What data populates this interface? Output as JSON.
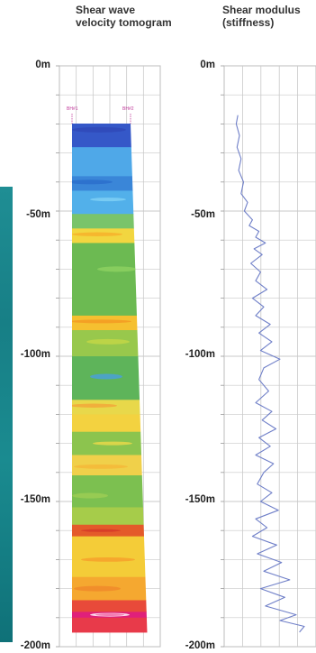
{
  "panel_left": {
    "title_line1": "Shear wave",
    "title_line2": "velocity tomogram",
    "borehole_left": "BH#1",
    "borehole_right": "BH#2"
  },
  "panel_right": {
    "title_line1": "Shear modulus",
    "title_line2": "(stiffness)"
  },
  "colors": {
    "accent_teal": "#1a8b90",
    "trace": "#6f7fc8",
    "grid": "#c9c9c9"
  },
  "chart_data": [
    {
      "type": "heatmap",
      "title": "Shear wave velocity tomogram",
      "ylabel": "",
      "yticks": [
        "0m",
        "-50m",
        "-100m",
        "-150m",
        "-200m"
      ],
      "ylim": [
        -200,
        0
      ],
      "grid": true,
      "color_bands": [
        {
          "depth_top": -17,
          "depth_bottom": -28,
          "color": "#3558c8"
        },
        {
          "depth_top": -28,
          "depth_bottom": -38,
          "color": "#4fa8e8"
        },
        {
          "depth_top": -38,
          "depth_bottom": -43,
          "color": "#3a86d8"
        },
        {
          "depth_top": -43,
          "depth_bottom": -51,
          "color": "#52b0ea"
        },
        {
          "depth_top": -51,
          "depth_bottom": -56,
          "color": "#7ac46a"
        },
        {
          "depth_top": -56,
          "depth_bottom": -61,
          "color": "#f2d640"
        },
        {
          "depth_top": -61,
          "depth_bottom": -86,
          "color": "#6cba52"
        },
        {
          "depth_top": -86,
          "depth_bottom": -91,
          "color": "#f5c030"
        },
        {
          "depth_top": -91,
          "depth_bottom": -100,
          "color": "#98c84c"
        },
        {
          "depth_top": -100,
          "depth_bottom": -115,
          "color": "#5eb45a"
        },
        {
          "depth_top": -115,
          "depth_bottom": -120,
          "color": "#e8d84a"
        },
        {
          "depth_top": -120,
          "depth_bottom": -126,
          "color": "#f3d240"
        },
        {
          "depth_top": -126,
          "depth_bottom": -134,
          "color": "#8cc44e"
        },
        {
          "depth_top": -134,
          "depth_bottom": -141,
          "color": "#f0d04a"
        },
        {
          "depth_top": -141,
          "depth_bottom": -152,
          "color": "#7cc050"
        },
        {
          "depth_top": -152,
          "depth_bottom": -158,
          "color": "#a6cc4a"
        },
        {
          "depth_top": -158,
          "depth_bottom": -162,
          "color": "#e45a2a"
        },
        {
          "depth_top": -162,
          "depth_bottom": -176,
          "color": "#f4cc38"
        },
        {
          "depth_top": -176,
          "depth_bottom": -184,
          "color": "#f5a830"
        },
        {
          "depth_top": -184,
          "depth_bottom": -188,
          "color": "#e84a3a"
        },
        {
          "depth_top": -188,
          "depth_bottom": -190,
          "color": "#e0207a"
        },
        {
          "depth_top": -190,
          "depth_bottom": -195,
          "color": "#e83a4a"
        }
      ]
    },
    {
      "type": "line",
      "title": "Shear modulus (stiffness)",
      "yticks": [
        "0m",
        "-50m",
        "-100m",
        "-150m",
        "-200m"
      ],
      "ylim": [
        -200,
        0
      ],
      "xlim": [
        0,
        1
      ],
      "grid": true,
      "series": [
        {
          "values": [
            {
              "x": 0.08,
              "y": -17
            },
            {
              "x": 0.06,
              "y": -20
            },
            {
              "x": 0.1,
              "y": -24
            },
            {
              "x": 0.07,
              "y": -28
            },
            {
              "x": 0.12,
              "y": -32
            },
            {
              "x": 0.09,
              "y": -36
            },
            {
              "x": 0.15,
              "y": -40
            },
            {
              "x": 0.12,
              "y": -44
            },
            {
              "x": 0.2,
              "y": -47
            },
            {
              "x": 0.16,
              "y": -50
            },
            {
              "x": 0.26,
              "y": -53
            },
            {
              "x": 0.22,
              "y": -55
            },
            {
              "x": 0.34,
              "y": -57
            },
            {
              "x": 0.3,
              "y": -59
            },
            {
              "x": 0.42,
              "y": -61
            },
            {
              "x": 0.28,
              "y": -63
            },
            {
              "x": 0.38,
              "y": -65
            },
            {
              "x": 0.24,
              "y": -68
            },
            {
              "x": 0.36,
              "y": -71
            },
            {
              "x": 0.3,
              "y": -74
            },
            {
              "x": 0.44,
              "y": -77
            },
            {
              "x": 0.26,
              "y": -80
            },
            {
              "x": 0.4,
              "y": -83
            },
            {
              "x": 0.3,
              "y": -86
            },
            {
              "x": 0.48,
              "y": -89
            },
            {
              "x": 0.34,
              "y": -92
            },
            {
              "x": 0.5,
              "y": -95
            },
            {
              "x": 0.36,
              "y": -98
            },
            {
              "x": 0.6,
              "y": -101
            },
            {
              "x": 0.4,
              "y": -104
            },
            {
              "x": 0.34,
              "y": -108
            },
            {
              "x": 0.46,
              "y": -112
            },
            {
              "x": 0.3,
              "y": -116
            },
            {
              "x": 0.5,
              "y": -119
            },
            {
              "x": 0.38,
              "y": -122
            },
            {
              "x": 0.55,
              "y": -125
            },
            {
              "x": 0.34,
              "y": -128
            },
            {
              "x": 0.48,
              "y": -131
            },
            {
              "x": 0.3,
              "y": -134
            },
            {
              "x": 0.52,
              "y": -137
            },
            {
              "x": 0.4,
              "y": -140
            },
            {
              "x": 0.32,
              "y": -144
            },
            {
              "x": 0.5,
              "y": -147
            },
            {
              "x": 0.36,
              "y": -150
            },
            {
              "x": 0.58,
              "y": -153
            },
            {
              "x": 0.3,
              "y": -156
            },
            {
              "x": 0.44,
              "y": -159
            },
            {
              "x": 0.26,
              "y": -162
            },
            {
              "x": 0.56,
              "y": -165
            },
            {
              "x": 0.32,
              "y": -168
            },
            {
              "x": 0.62,
              "y": -171
            },
            {
              "x": 0.4,
              "y": -174
            },
            {
              "x": 0.72,
              "y": -177
            },
            {
              "x": 0.36,
              "y": -180
            },
            {
              "x": 0.66,
              "y": -183
            },
            {
              "x": 0.42,
              "y": -186
            },
            {
              "x": 0.8,
              "y": -189
            },
            {
              "x": 0.6,
              "y": -191
            },
            {
              "x": 0.9,
              "y": -193
            },
            {
              "x": 0.84,
              "y": -195
            }
          ]
        }
      ]
    }
  ]
}
